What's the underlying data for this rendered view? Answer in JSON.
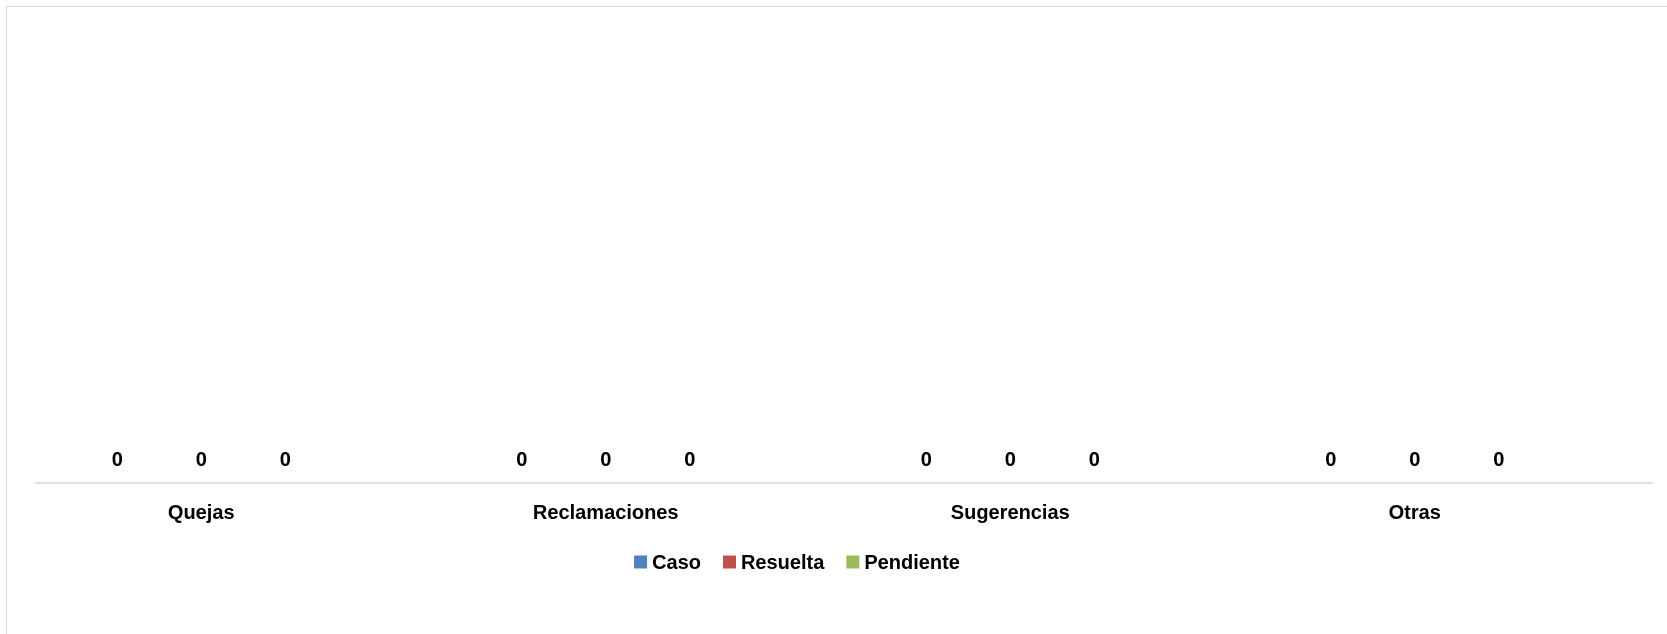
{
  "chart_data": {
    "type": "bar",
    "categories": [
      "Quejas",
      "Reclamaciones",
      "Sugerencias",
      "Otras"
    ],
    "series": [
      {
        "name": "Caso",
        "values": [
          0,
          0,
          0,
          0
        ],
        "color": "#4f81bd"
      },
      {
        "name": "Resuelta",
        "values": [
          0,
          0,
          0,
          0
        ],
        "color": "#c0504d"
      },
      {
        "name": "Pendiente",
        "values": [
          0,
          0,
          0,
          0
        ],
        "color": "#9bbb59"
      }
    ],
    "data_labels": true,
    "title": "",
    "xlabel": "",
    "ylabel": "",
    "grid": false,
    "legend_position": "bottom",
    "axis_color": "#d9d9d9"
  }
}
